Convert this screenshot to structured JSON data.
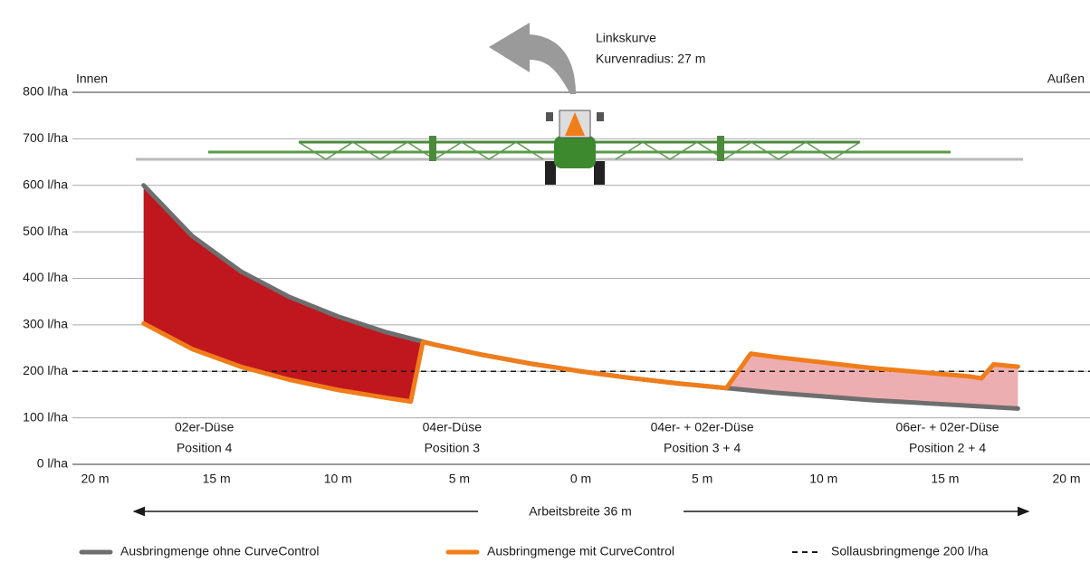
{
  "chart_data": {
    "type": "line",
    "annotation_turn": "Linkskurve",
    "annotation_radius": "Kurvenradius: 27 m",
    "label_inner": "Innen",
    "label_outer": "Außen",
    "xlabel": "Arbeitsbreite 36 m",
    "xlim": [
      -20,
      20
    ],
    "xticks": [
      {
        "value": -20,
        "label": "20 m"
      },
      {
        "value": -15,
        "label": "15 m"
      },
      {
        "value": -10,
        "label": "10 m"
      },
      {
        "value": -5,
        "label": "5 m"
      },
      {
        "value": 0,
        "label": "0 m"
      },
      {
        "value": 5,
        "label": "5 m"
      },
      {
        "value": 10,
        "label": "10 m"
      },
      {
        "value": 15,
        "label": "15 m"
      },
      {
        "value": 20,
        "label": "20 m"
      }
    ],
    "ylim": [
      0,
      800
    ],
    "yticks": [
      {
        "value": 0,
        "label": "0 l/ha"
      },
      {
        "value": 100,
        "label": "100 l/ha"
      },
      {
        "value": 200,
        "label": "200 l/ha"
      },
      {
        "value": 300,
        "label": "300 l/ha"
      },
      {
        "value": 400,
        "label": "400 l/ha"
      },
      {
        "value": 500,
        "label": "500 l/ha"
      },
      {
        "value": 600,
        "label": "600 l/ha"
      },
      {
        "value": 700,
        "label": "700 l/ha"
      },
      {
        "value": 800,
        "label": "800 l/ha"
      }
    ],
    "grid": true,
    "series": [
      {
        "name": "Ausbringmenge ohne CurveControl",
        "color": "#6e6e6e",
        "x": [
          -18,
          -16,
          -14,
          -12,
          -10,
          -8,
          -6,
          -4,
          -2,
          0,
          2,
          4,
          6,
          8,
          10,
          12,
          14,
          16,
          18
        ],
        "values": [
          600,
          491,
          415,
          360,
          318,
          284,
          257,
          235,
          216,
          200,
          186,
          174,
          164,
          154,
          146,
          138,
          132,
          126,
          120
        ]
      },
      {
        "name": "Ausbringmenge mit CurveControl",
        "color": "#f07d1a",
        "x": [
          -18,
          -16,
          -14,
          -12,
          -10,
          -8,
          -7,
          -6.5,
          -4,
          -2,
          0,
          2,
          4,
          6,
          7,
          8,
          10,
          12,
          14,
          16,
          16.5,
          17,
          18
        ],
        "values": [
          303,
          248,
          210,
          182,
          160,
          143,
          135,
          263,
          235,
          216,
          200,
          186,
          174,
          164,
          238,
          231,
          219,
          207,
          198,
          189,
          185,
          215,
          210
        ]
      }
    ],
    "target": {
      "name": "Sollausbringmenge 200 l/ha",
      "color": "#1a1a1a",
      "value": 200
    },
    "fill_colors": [
      "#c0161d",
      "#ecaeb0"
    ],
    "sections": [
      {
        "x": -15.5,
        "lines": [
          "02er-Düse",
          "Position 4"
        ]
      },
      {
        "x": -5.3,
        "lines": [
          "04er-Düse",
          "Position 3"
        ]
      },
      {
        "x": 5,
        "lines": [
          "04er- + 02er-Düse",
          "Position 3 + 4"
        ]
      },
      {
        "x": 15.1,
        "lines": [
          "06er- + 02er-Düse",
          "Position 2 + 4"
        ]
      }
    ]
  }
}
